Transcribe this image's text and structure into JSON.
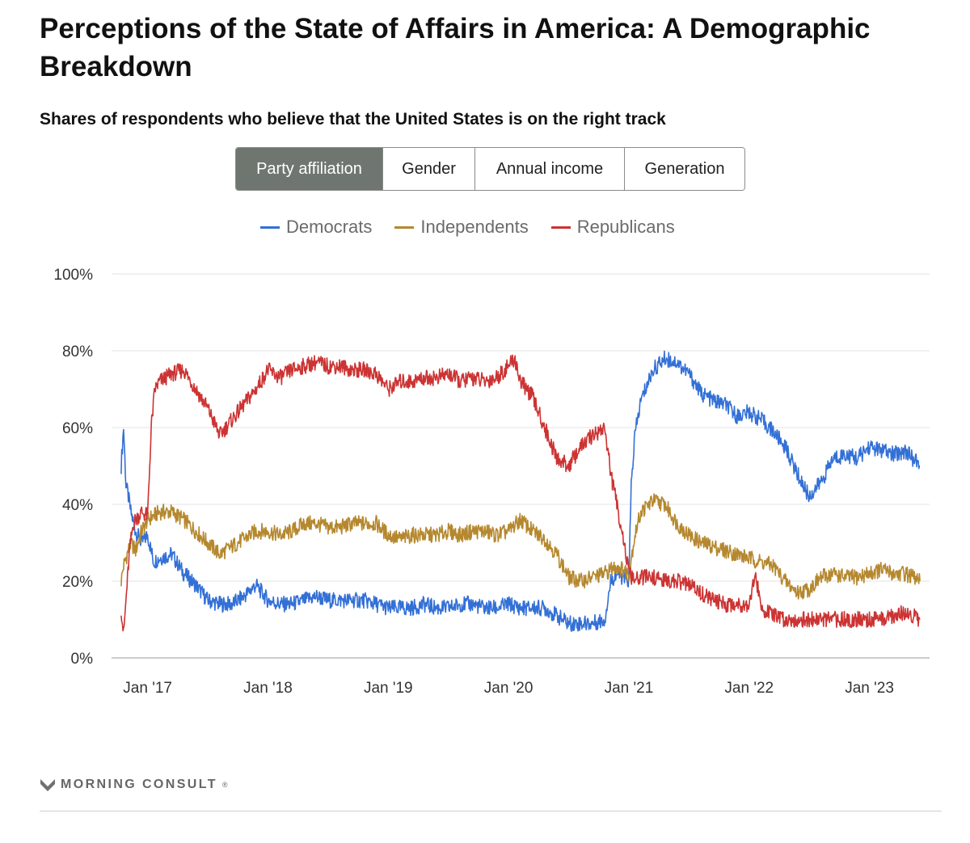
{
  "header": {
    "title": "Perceptions of the State of Affairs in America: A Demographic Breakdown",
    "subtitle": "Shares of respondents who believe that the United States is on the right track"
  },
  "tabs": [
    {
      "label": "Party affiliation",
      "active": true
    },
    {
      "label": "Gender",
      "active": false
    },
    {
      "label": "Annual income",
      "active": false
    },
    {
      "label": "Generation",
      "active": false
    }
  ],
  "legend": [
    {
      "name": "Democrats",
      "color": "#3370d6"
    },
    {
      "name": "Independents",
      "color": "#b5882f"
    },
    {
      "name": "Republicans",
      "color": "#cc3333"
    }
  ],
  "footer": {
    "brand": "MORNING CONSULT",
    "brand_mark": "®"
  },
  "chart_data": {
    "type": "line",
    "title": "Perceptions of the State of Affairs in America: A Demographic Breakdown",
    "subtitle": "Shares of respondents who believe that the United States is on the right track",
    "xlabel": "",
    "ylabel": "",
    "ylim": [
      0,
      100
    ],
    "xlim": [
      2016.7,
      2023.5
    ],
    "y_ticks": [
      0,
      20,
      40,
      60,
      80,
      100
    ],
    "y_tick_labels": [
      "0%",
      "20%",
      "40%",
      "60%",
      "80%",
      "100%"
    ],
    "x_ticks": [
      2017,
      2018,
      2019,
      2020,
      2021,
      2022,
      2023
    ],
    "x_tick_labels": [
      "Jan '17",
      "Jan '18",
      "Jan '19",
      "Jan '20",
      "Jan '21",
      "Jan '22",
      "Jan '23"
    ],
    "grid": true,
    "legend_position": "top-center",
    "series": [
      {
        "name": "Democrats",
        "color": "#3370d6",
        "x": [
          2016.78,
          2016.8,
          2016.82,
          2016.84,
          2016.86,
          2016.9,
          2016.95,
          2017.0,
          2017.05,
          2017.1,
          2017.2,
          2017.3,
          2017.4,
          2017.5,
          2017.6,
          2017.7,
          2017.8,
          2017.9,
          2018.0,
          2018.1,
          2018.2,
          2018.3,
          2018.4,
          2018.5,
          2018.6,
          2018.7,
          2018.8,
          2018.9,
          2019.0,
          2019.1,
          2019.2,
          2019.3,
          2019.4,
          2019.5,
          2019.6,
          2019.7,
          2019.8,
          2019.9,
          2020.0,
          2020.1,
          2020.2,
          2020.3,
          2020.4,
          2020.5,
          2020.6,
          2020.7,
          2020.8,
          2020.85,
          2020.9,
          2020.95,
          2021.0,
          2021.02,
          2021.05,
          2021.1,
          2021.2,
          2021.3,
          2021.4,
          2021.5,
          2021.6,
          2021.7,
          2021.8,
          2021.9,
          2022.0,
          2022.1,
          2022.2,
          2022.3,
          2022.4,
          2022.5,
          2022.6,
          2022.7,
          2022.8,
          2022.9,
          2023.0,
          2023.1,
          2023.2,
          2023.3,
          2023.42
        ],
        "values": [
          50,
          60,
          45,
          42,
          38,
          33,
          30,
          32,
          25,
          26,
          27,
          22,
          19,
          15,
          14,
          14,
          16,
          19,
          15,
          14,
          14,
          15,
          16,
          15,
          15,
          15,
          15,
          14,
          13,
          13,
          13,
          14,
          13,
          13,
          14,
          14,
          13,
          13,
          14,
          13,
          13,
          13,
          11,
          9,
          9,
          9,
          10,
          20,
          22,
          21,
          20,
          45,
          58,
          67,
          75,
          78,
          77,
          74,
          69,
          67,
          66,
          63,
          64,
          62,
          59,
          55,
          48,
          42,
          46,
          52,
          53,
          52,
          55,
          54,
          53,
          54,
          50
        ]
      },
      {
        "name": "Independents",
        "color": "#b5882f",
        "x": [
          2016.78,
          2016.8,
          2016.83,
          2016.86,
          2016.9,
          2016.95,
          2017.0,
          2017.05,
          2017.1,
          2017.2,
          2017.3,
          2017.4,
          2017.5,
          2017.6,
          2017.7,
          2017.8,
          2017.9,
          2018.0,
          2018.1,
          2018.2,
          2018.3,
          2018.4,
          2018.5,
          2018.6,
          2018.7,
          2018.8,
          2018.9,
          2019.0,
          2019.1,
          2019.2,
          2019.3,
          2019.4,
          2019.5,
          2019.6,
          2019.7,
          2019.8,
          2019.9,
          2020.0,
          2020.1,
          2020.2,
          2020.3,
          2020.4,
          2020.5,
          2020.6,
          2020.7,
          2020.8,
          2020.9,
          2021.0,
          2021.05,
          2021.1,
          2021.2,
          2021.3,
          2021.4,
          2021.5,
          2021.6,
          2021.7,
          2021.8,
          2021.9,
          2022.0,
          2022.1,
          2022.2,
          2022.3,
          2022.4,
          2022.5,
          2022.6,
          2022.7,
          2022.8,
          2022.9,
          2023.0,
          2023.1,
          2023.2,
          2023.3,
          2023.42
        ],
        "values": [
          20,
          24,
          27,
          30,
          28,
          33,
          36,
          37,
          38,
          38,
          36,
          33,
          30,
          27,
          29,
          31,
          33,
          33,
          32,
          33,
          35,
          35,
          34,
          34,
          35,
          35,
          35,
          32,
          31,
          32,
          32,
          32,
          33,
          32,
          33,
          33,
          32,
          33,
          36,
          33,
          31,
          27,
          21,
          20,
          21,
          22,
          24,
          22,
          32,
          38,
          41,
          40,
          35,
          32,
          30,
          29,
          28,
          27,
          26,
          25,
          24,
          20,
          17,
          18,
          21,
          22,
          21,
          21,
          22,
          23,
          22,
          22,
          20
        ]
      },
      {
        "name": "Republicans",
        "color": "#cc3333",
        "x": [
          2016.78,
          2016.8,
          2016.82,
          2016.85,
          2016.88,
          2016.9,
          2016.95,
          2017.0,
          2017.03,
          2017.06,
          2017.1,
          2017.2,
          2017.3,
          2017.4,
          2017.5,
          2017.6,
          2017.7,
          2017.8,
          2017.9,
          2018.0,
          2018.1,
          2018.2,
          2018.3,
          2018.4,
          2018.5,
          2018.6,
          2018.7,
          2018.8,
          2018.9,
          2019.0,
          2019.1,
          2019.2,
          2019.3,
          2019.4,
          2019.5,
          2019.6,
          2019.7,
          2019.8,
          2019.9,
          2020.0,
          2020.05,
          2020.1,
          2020.2,
          2020.3,
          2020.4,
          2020.5,
          2020.6,
          2020.7,
          2020.8,
          2020.85,
          2020.9,
          2020.95,
          2021.0,
          2021.05,
          2021.1,
          2021.2,
          2021.3,
          2021.4,
          2021.5,
          2021.6,
          2021.7,
          2021.8,
          2021.9,
          2022.0,
          2022.05,
          2022.1,
          2022.2,
          2022.3,
          2022.4,
          2022.5,
          2022.6,
          2022.7,
          2022.8,
          2022.9,
          2023.0,
          2023.1,
          2023.2,
          2023.3,
          2023.42
        ],
        "values": [
          13,
          6,
          15,
          28,
          35,
          36,
          38,
          37,
          60,
          70,
          72,
          74,
          75,
          70,
          65,
          58,
          62,
          66,
          70,
          75,
          73,
          75,
          76,
          77,
          76,
          76,
          75,
          75,
          74,
          70,
          72,
          72,
          73,
          73,
          74,
          72,
          73,
          72,
          73,
          76,
          78,
          72,
          68,
          60,
          52,
          50,
          55,
          58,
          60,
          48,
          40,
          32,
          22,
          20,
          21,
          21,
          20,
          20,
          19,
          17,
          15,
          14,
          14,
          14,
          22,
          13,
          11,
          10,
          10,
          10,
          10,
          10,
          10,
          10,
          10,
          10,
          11,
          12,
          10
        ]
      }
    ]
  }
}
